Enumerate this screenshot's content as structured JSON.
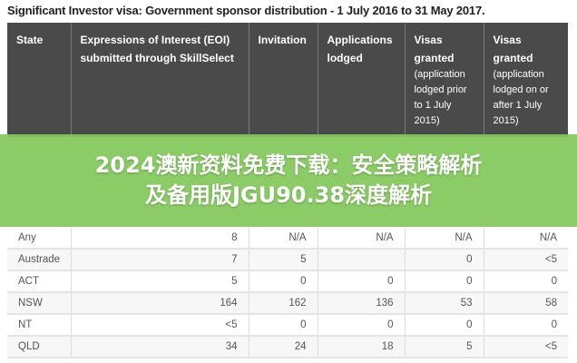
{
  "caption": "Significant Investor visa: Government sponsor distribution - 1 July 2016 to 31 May 2017.",
  "headers": [
    {
      "main": "State",
      "sub": ""
    },
    {
      "main": "Expressions of Interest (EOI) submitted through SkillSelect",
      "sub": ""
    },
    {
      "main": "Invitation",
      "sub": ""
    },
    {
      "main": "Applications lodged",
      "sub": ""
    },
    {
      "main": "Visas granted",
      "sub": "(application lodged prior to 1 July 2015)"
    },
    {
      "main": "Visas granted",
      "sub": "(application lodged on or after 1 July 2015)"
    }
  ],
  "rows": [
    [
      "Any",
      "8",
      "N/A",
      "N/A",
      "N/A",
      "N/A"
    ],
    [
      "Austrade",
      "7",
      "5",
      "",
      "0",
      "<5"
    ],
    [
      "ACT",
      "5",
      "0",
      "0",
      "0",
      "0"
    ],
    [
      "NSW",
      "164",
      "162",
      "136",
      "53",
      "58"
    ],
    [
      "NT",
      "<5",
      "0",
      "0",
      "0",
      "0"
    ],
    [
      "QLD",
      "34",
      "24",
      "18",
      "5",
      "<5"
    ]
  ],
  "banner": {
    "line1": "2024澳新资料免费下载：安全策略解析",
    "line2": "及备用版JGU90.38深度解析",
    "color": "#82c85a"
  }
}
